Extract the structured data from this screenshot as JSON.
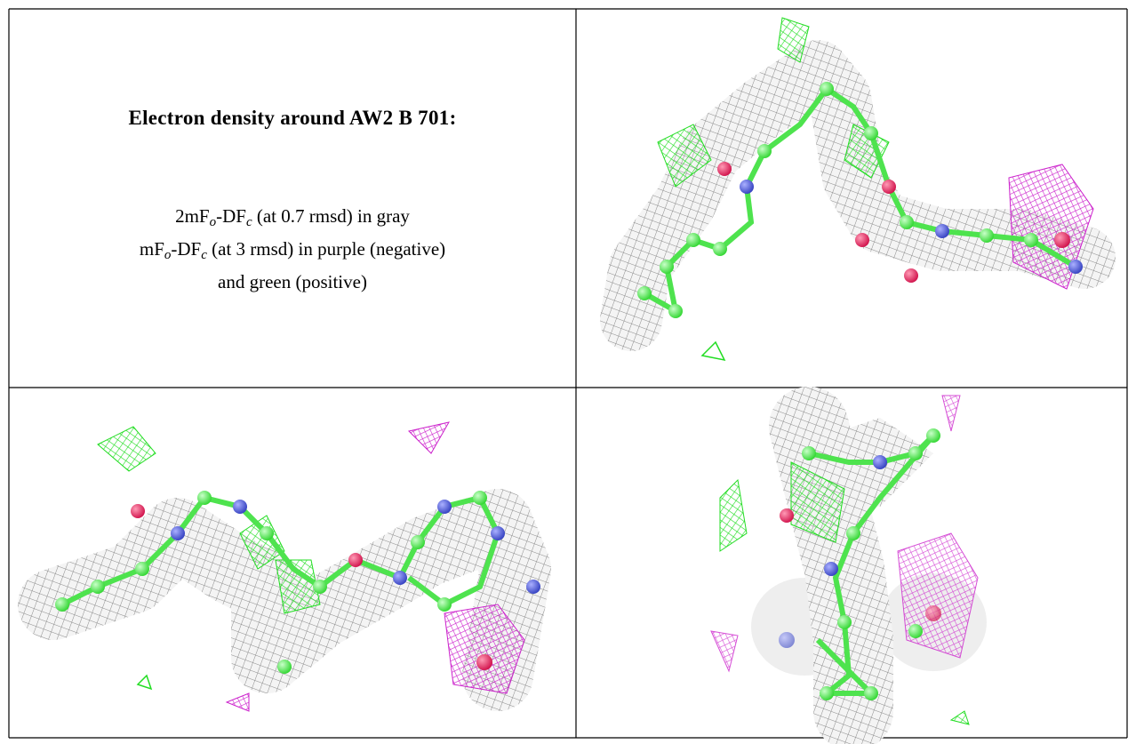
{
  "header": {
    "title": "Electron density around AW2 B 701:"
  },
  "legend": {
    "lines": [
      {
        "parts": [
          "2mF",
          "o",
          "-DF",
          "c",
          " (at 0.7 rmsd) in gray"
        ]
      },
      {
        "parts": [
          "mF",
          "o",
          "-DF",
          "c",
          " (at 3 rmsd) in purple (negative)"
        ]
      },
      {
        "parts": [
          "and green (positive)"
        ]
      }
    ]
  }
}
